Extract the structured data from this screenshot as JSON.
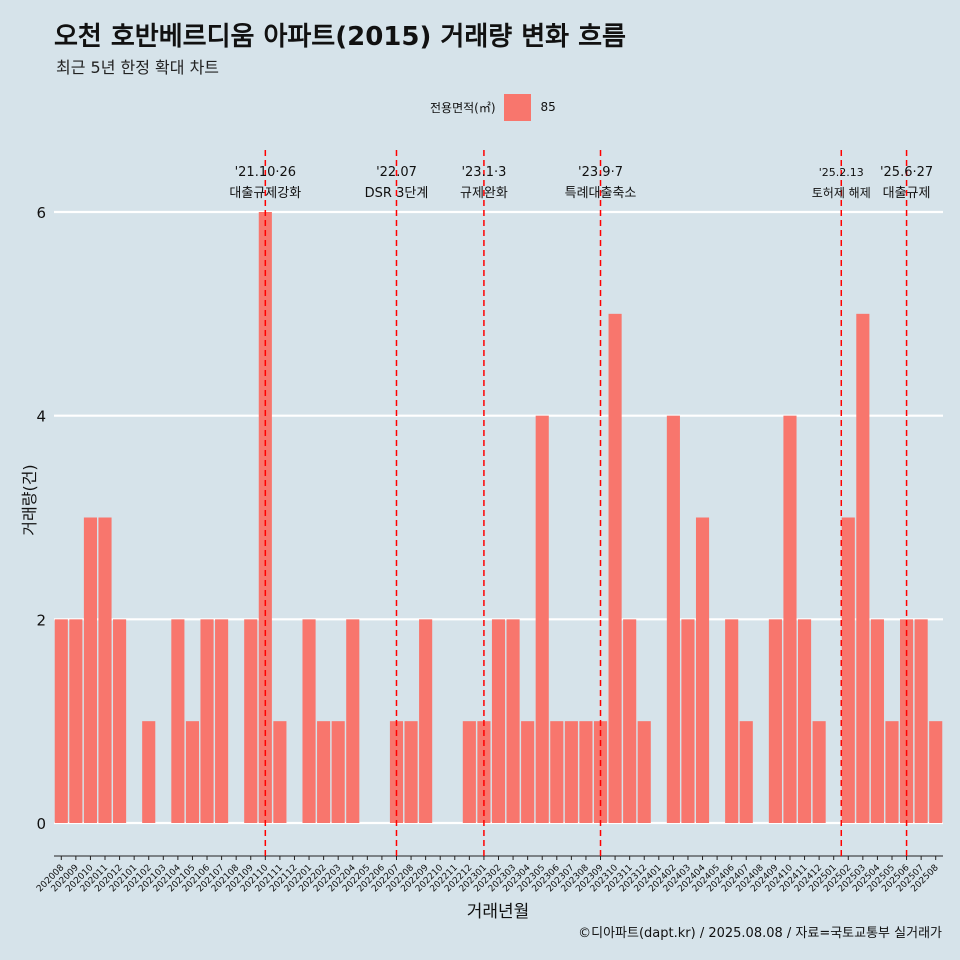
{
  "title": "오천 호반베르디움 아파트(2015) 거래량 변화 흐름",
  "subtitle": "최근 5년 한정 확대 차트",
  "legend": {
    "title": "전용면적(㎡)",
    "label": "85"
  },
  "caption": "©디아파트(dapt.kr) / 2025.08.08 / 자료=국토교통부 실거래가",
  "colors": {
    "bar": "#f8766d",
    "background": "#d6e3ea",
    "grid": "#ffffff",
    "event_line": "#ff0000"
  },
  "chart_data": {
    "type": "bar",
    "xlabel": "거래년월",
    "ylabel": "거래량(건)",
    "ylim": [
      0,
      6
    ],
    "yticks": [
      0,
      2,
      4,
      6
    ],
    "legend_position": "top",
    "categories": [
      "202008",
      "202009",
      "202010",
      "202011",
      "202012",
      "202101",
      "202102",
      "202103",
      "202104",
      "202105",
      "202106",
      "202107",
      "202108",
      "202109",
      "202110",
      "202111",
      "202112",
      "202201",
      "202202",
      "202203",
      "202204",
      "202205",
      "202206",
      "202207",
      "202208",
      "202209",
      "202210",
      "202211",
      "202212",
      "202301",
      "202302",
      "202303",
      "202304",
      "202305",
      "202306",
      "202307",
      "202308",
      "202309",
      "202310",
      "202311",
      "202312",
      "202401",
      "202402",
      "202403",
      "202404",
      "202405",
      "202406",
      "202407",
      "202408",
      "202409",
      "202410",
      "202411",
      "202412",
      "202501",
      "202502",
      "202503",
      "202504",
      "202505",
      "202506",
      "202507",
      "202508"
    ],
    "series": [
      {
        "name": "85",
        "values": [
          2,
          2,
          3,
          3,
          2,
          0,
          1,
          0,
          2,
          1,
          2,
          2,
          0,
          2,
          6,
          1,
          0,
          2,
          1,
          1,
          2,
          0,
          0,
          1,
          1,
          2,
          0,
          0,
          1,
          1,
          2,
          2,
          1,
          4,
          1,
          1,
          1,
          1,
          5,
          2,
          1,
          0,
          4,
          2,
          3,
          0,
          2,
          1,
          0,
          2,
          4,
          2,
          1,
          0,
          3,
          5,
          2,
          1,
          2,
          2,
          1
        ]
      }
    ],
    "annotations": [
      {
        "category": "202110",
        "date": "'21.10·26",
        "label": "대출규제강화"
      },
      {
        "category": "202207",
        "date": "'22.07",
        "label": "DSR 3단계"
      },
      {
        "category": "202301",
        "date": "'23.1·3",
        "label": "규제완화"
      },
      {
        "category": "202309",
        "date": "'23.9·7",
        "label": "특례대출축소"
      },
      {
        "category": "202502",
        "date": "'25.2.13",
        "label": "토허제 해제"
      },
      {
        "category": "202506",
        "date": "'25.6·27",
        "label": "대출규제"
      }
    ]
  }
}
